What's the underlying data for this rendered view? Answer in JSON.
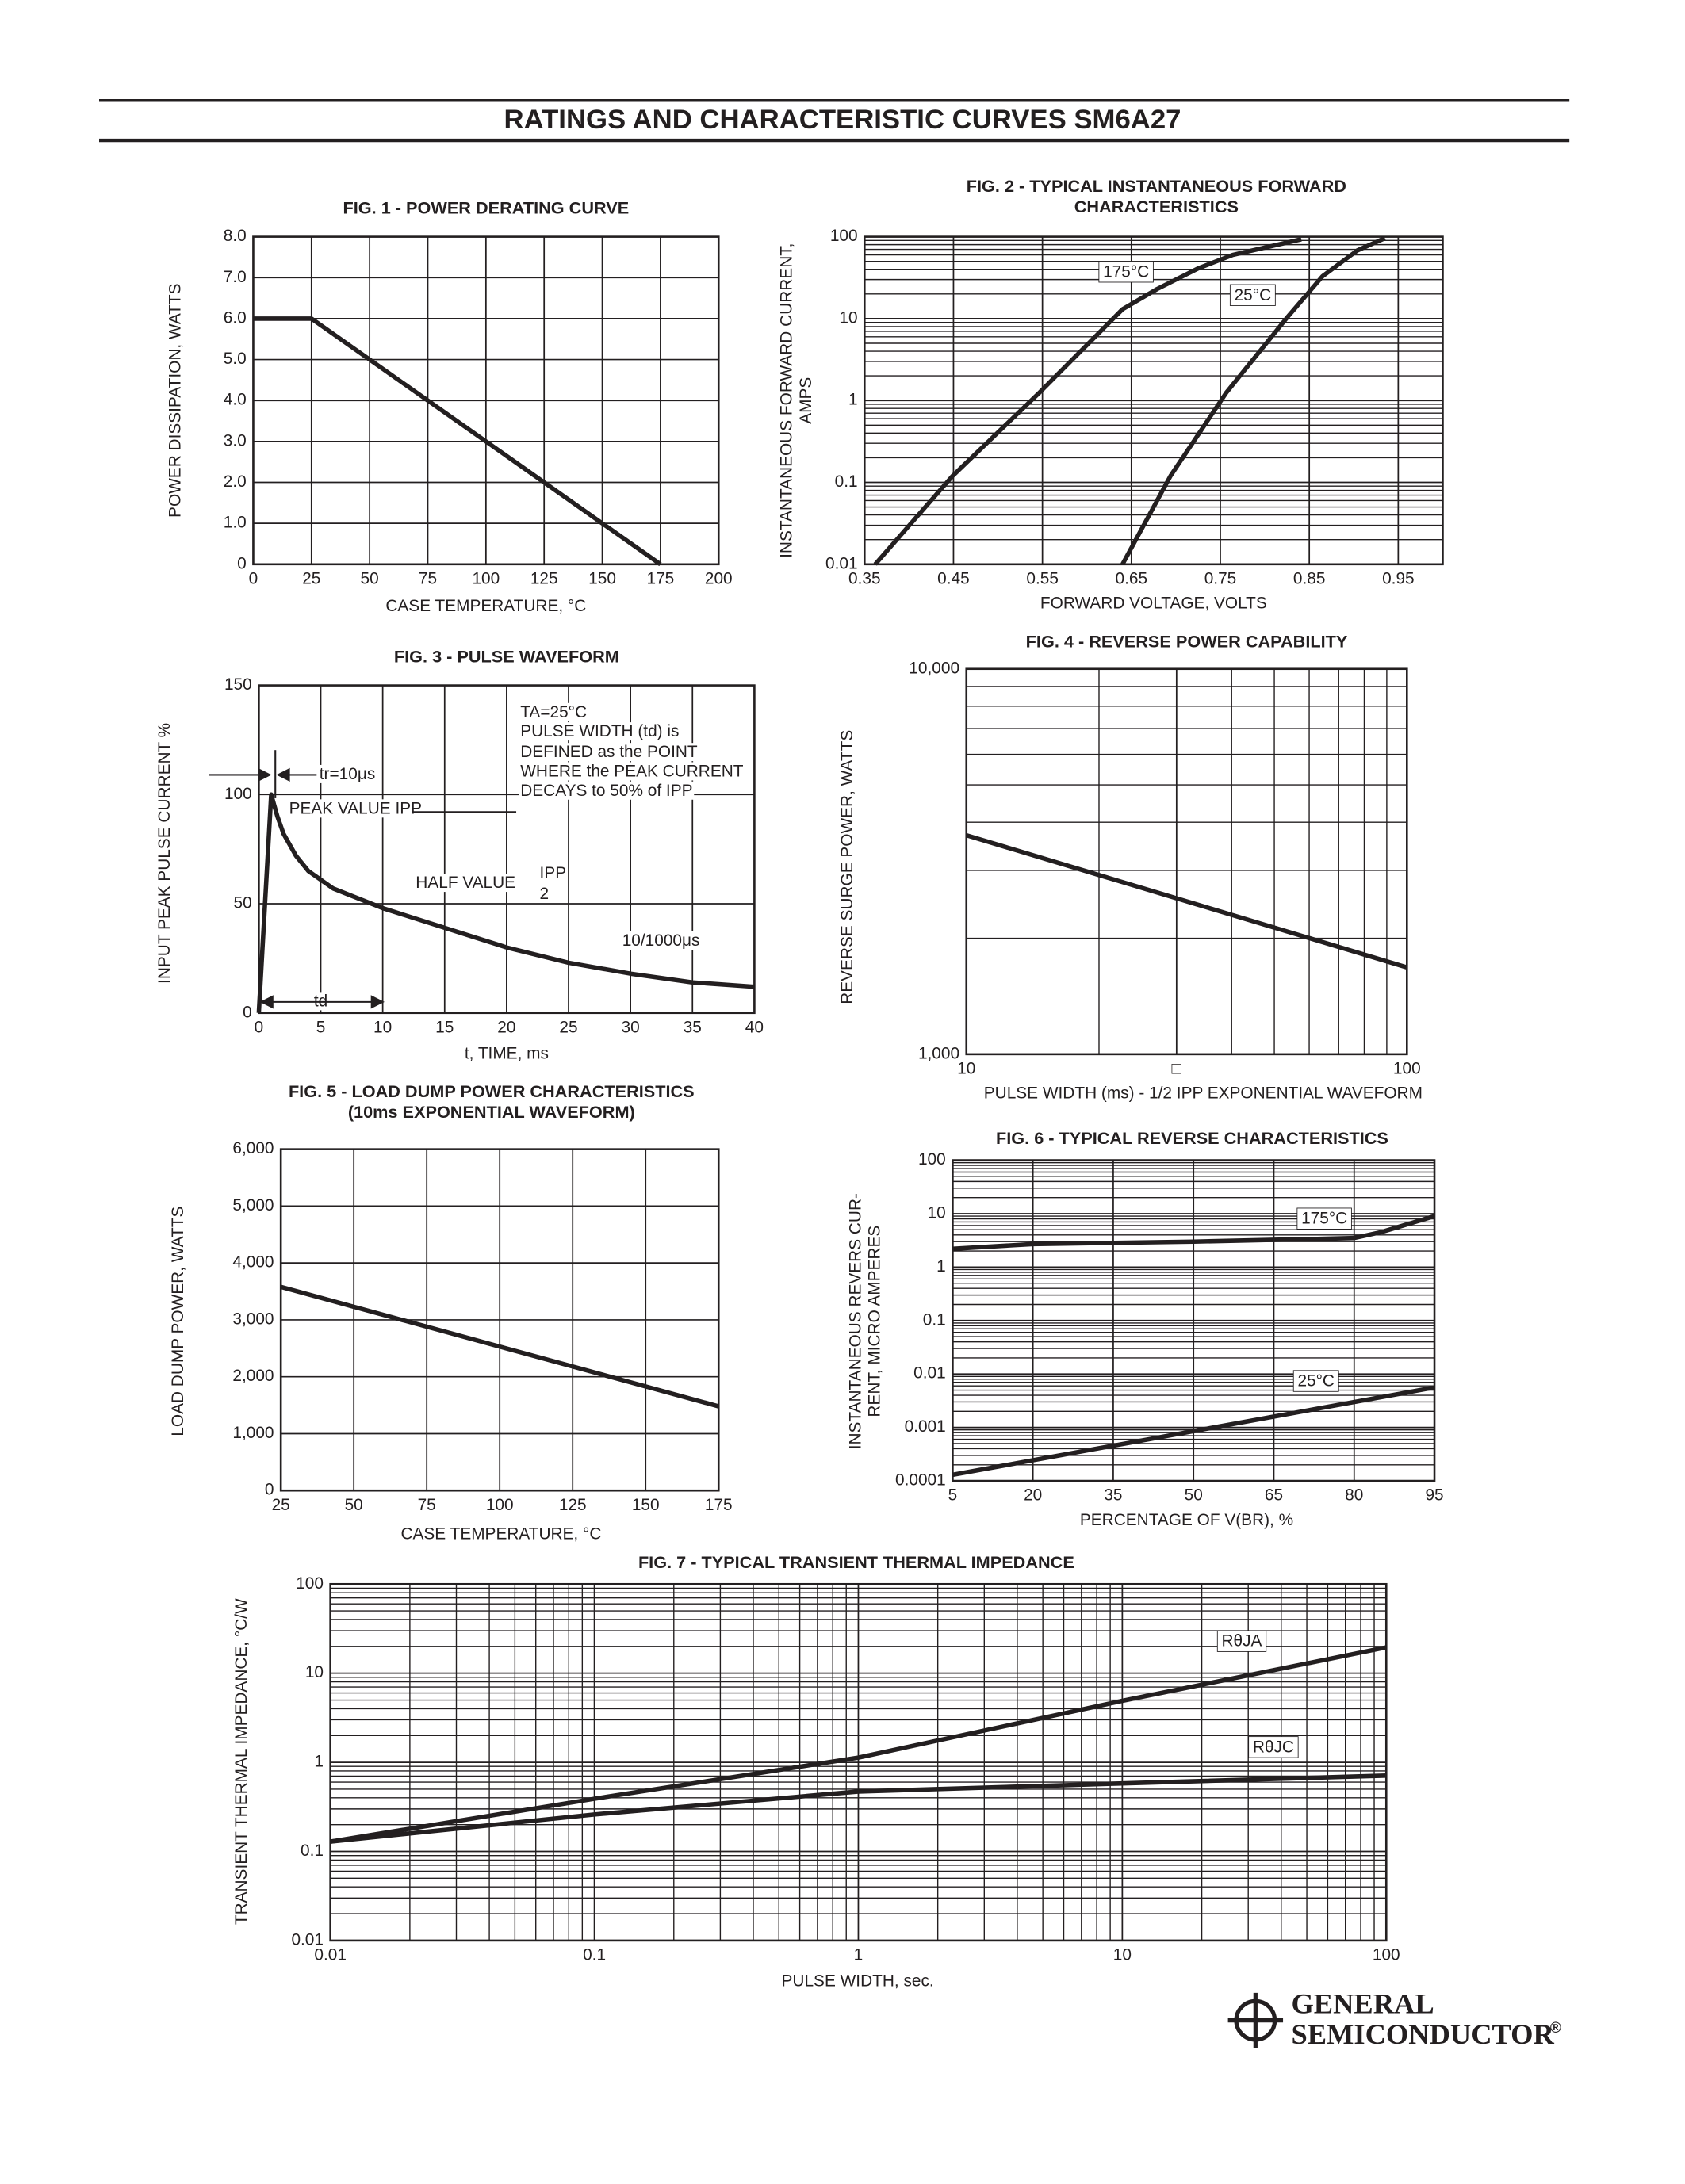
{
  "title": "RATINGS AND CHARACTERISTIC CURVES SM6A27",
  "logo": {
    "line1": "GENERAL",
    "line2": "SEMICONDUCTOR",
    "mark": "®"
  },
  "chart_data": [
    {
      "type": "line",
      "title": "FIG. 1 - POWER DERATING CURVE",
      "x_label": "CASE TEMPERATURE, °C",
      "y_label": "POWER DISSIPATION, WATTS",
      "x": [
        0,
        25,
        175
      ],
      "values": [
        6,
        6,
        0
      ],
      "color": "#231f20",
      "xlim": [
        0,
        200
      ],
      "xticks": [
        0,
        25,
        50,
        75,
        100,
        125,
        150,
        175,
        200
      ],
      "ylim": [
        0,
        8
      ],
      "yticks": [
        0,
        {
          "value": 1,
          "label": "1.0"
        },
        {
          "value": 2,
          "label": "2.0"
        },
        {
          "value": 3,
          "label": "3.0"
        },
        {
          "value": 4,
          "label": "4.0"
        },
        {
          "value": 5,
          "label": "5.0"
        },
        {
          "value": 6,
          "label": "6.0"
        },
        {
          "value": 7,
          "label": "7.0"
        },
        {
          "value": 8,
          "label": "8.0"
        }
      ],
      "grid": true
    },
    {
      "type": "line",
      "title": [
        "FIG. 2 - TYPICAL INSTANTANEOUS FORWARD",
        "CHARACTERISTICS"
      ],
      "x_label": "FORWARD VOLTAGE, VOLTS",
      "y_label": [
        "INSTANTANEOUS FORWARD CURRENT,",
        "AMPS"
      ],
      "series": [
        {
          "name": "175°C",
          "color": "#231f20",
          "x": [
            0.362,
            0.449,
            0.547,
            0.64,
            0.679,
            0.725,
            0.764,
            0.841
          ],
          "values": [
            0.01,
            0.12,
            1.26,
            13,
            23,
            41,
            60,
            93
          ]
        },
        {
          "name": "25°C",
          "color": "#231f20",
          "x": [
            0.64,
            0.694,
            0.757,
            0.826,
            0.865,
            0.904,
            0.935
          ],
          "values": [
            0.01,
            0.12,
            1.26,
            10.6,
            33,
            68,
            96
          ]
        }
      ],
      "xlim": [
        0.35,
        1.0
      ],
      "xticks": [
        0.35,
        0.45,
        0.55,
        0.65,
        0.75,
        0.85,
        0.95
      ],
      "ylim": [
        0.01,
        100
      ],
      "yticks": [
        0.01,
        0.1,
        1,
        10,
        100
      ],
      "ylog": true,
      "grid": true
    },
    {
      "type": "line",
      "title": "FIG. 3 - PULSE WAVEFORM",
      "x_label": "t, TIME, ms",
      "y_label": "INPUT PEAK PULSE CURRENT %",
      "x": [
        0,
        1,
        1.5,
        2,
        3,
        4,
        6,
        10,
        15,
        20,
        25,
        30,
        35,
        40
      ],
      "values": [
        0,
        100,
        90,
        82,
        72,
        65,
        57,
        48,
        39,
        30,
        23,
        18,
        14,
        12
      ],
      "color": "#231f20",
      "xlim": [
        0,
        40
      ],
      "xticks": [
        0,
        5,
        10,
        15,
        20,
        25,
        30,
        35,
        40
      ],
      "ylim": [
        0,
        150
      ],
      "yticks": [
        0,
        50,
        100,
        150
      ],
      "grid": true,
      "annotations": [
        "TA=25°C",
        "PULSE WIDTH (td) is",
        "DEFINED as the POINT",
        "WHERE the PEAK CURRENT",
        "DECAYS to 50% of IPP",
        "tr=10μs",
        "PEAK VALUE IPP",
        "HALF VALUE",
        "IPP",
        "2",
        "10/1000μs",
        "td"
      ]
    },
    {
      "type": "line",
      "title": "FIG. 4 - REVERSE POWER CAPABILITY",
      "x_label": "PULSE WIDTH (ms) - 1/2 IPP EXPONENTIAL WAVEFORM",
      "y_label": "REVERSE SURGE POWER, WATTS",
      "x": [
        10,
        100
      ],
      "values": [
        3700,
        1680
      ],
      "color": "#231f20",
      "xlim": [
        10,
        100
      ],
      "xticks": [
        10,
        {
          "value": 30,
          "label": "□"
        },
        100
      ],
      "xlog": true,
      "ylim": [
        1000,
        10000
      ],
      "yticks": [
        {
          "value": 1000,
          "label": "1,000"
        },
        {
          "value": 10000,
          "label": "10,000"
        }
      ],
      "ylog": true,
      "grid": true
    },
    {
      "type": "line",
      "title": [
        "FIG. 5 - LOAD DUMP POWER CHARACTERISTICS",
        "(10ms EXPONENTIAL WAVEFORM)"
      ],
      "x_label": "CASE TEMPERATURE, °C",
      "y_label": "LOAD DUMP POWER, WATTS",
      "x": [
        25,
        175
      ],
      "values": [
        3580,
        1480
      ],
      "color": "#231f20",
      "xlim": [
        25,
        175
      ],
      "xticks": [
        25,
        50,
        75,
        100,
        125,
        150,
        175
      ],
      "ylim": [
        0,
        6000
      ],
      "yticks": [
        0,
        {
          "value": 1000,
          "label": "1,000"
        },
        {
          "value": 2000,
          "label": "2,000"
        },
        {
          "value": 3000,
          "label": "3,000"
        },
        {
          "value": 4000,
          "label": "4,000"
        },
        {
          "value": 5000,
          "label": "5,000"
        },
        {
          "value": 6000,
          "label": "6,000"
        }
      ],
      "grid": true
    },
    {
      "type": "line",
      "title": "FIG. 6 - TYPICAL REVERSE CHARACTERISTICS",
      "x_label": "PERCENTAGE OF V(BR), %",
      "y_label": [
        "INSTANTANEOUS REVERS CUR-",
        "RENT, MICRO AMPERES"
      ],
      "series": [
        {
          "name": "175°C",
          "color": "#231f20",
          "x": [
            5,
            20,
            50,
            80,
            85,
            95
          ],
          "values": [
            2.2,
            2.7,
            3.0,
            3.5,
            4.5,
            9
          ]
        },
        {
          "name": "25°C",
          "color": "#231f20",
          "x": [
            5,
            95
          ],
          "values": [
            0.00013,
            0.0056
          ]
        }
      ],
      "xlim": [
        5,
        95
      ],
      "xticks": [
        5,
        20,
        35,
        50,
        65,
        80,
        95
      ],
      "ylim": [
        0.0001,
        100
      ],
      "yticks": [
        0.0001,
        0.001,
        0.01,
        0.1,
        1,
        10,
        100
      ],
      "ylog": true,
      "grid": true
    },
    {
      "type": "line",
      "title": "FIG. 7 - TYPICAL TRANSIENT THERMAL IMPEDANCE",
      "x_label": "PULSE WIDTH, sec.",
      "y_label": "TRANSIENT THERMAL IMPEDANCE, °C/W",
      "series": [
        {
          "name": "RθJA",
          "color": "#231f20",
          "x": [
            0.01,
            0.1,
            1,
            10,
            100
          ],
          "values": [
            0.129,
            0.39,
            1.13,
            4.9,
            19.5
          ]
        },
        {
          "name": "RθJC",
          "color": "#231f20",
          "x": [
            0.01,
            0.1,
            1,
            10,
            100
          ],
          "values": [
            0.129,
            0.26,
            0.47,
            0.58,
            0.71
          ]
        }
      ],
      "xlim": [
        0.01,
        100
      ],
      "xticks": [
        0.01,
        0.1,
        1,
        10,
        100
      ],
      "xlog": true,
      "ylim": [
        0.01,
        100
      ],
      "yticks": [
        0.01,
        0.1,
        1,
        10,
        100
      ],
      "ylog": true,
      "grid": true
    }
  ]
}
